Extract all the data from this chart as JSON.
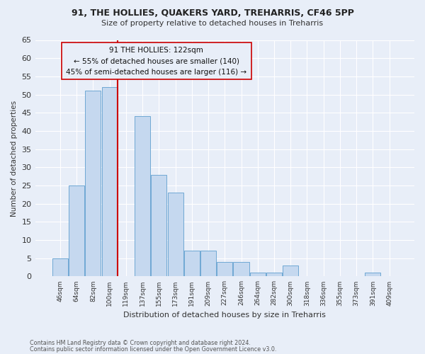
{
  "title1": "91, THE HOLLIES, QUAKERS YARD, TREHARRIS, CF46 5PP",
  "title2": "Size of property relative to detached houses in Treharris",
  "xlabel": "Distribution of detached houses by size in Treharris",
  "ylabel": "Number of detached properties",
  "footer1": "Contains HM Land Registry data © Crown copyright and database right 2024.",
  "footer2": "Contains public sector information licensed under the Open Government Licence v3.0.",
  "annotation_line1": "91 THE HOLLIES: 122sqm",
  "annotation_line2": "← 55% of detached houses are smaller (140)",
  "annotation_line3": "45% of semi-detached houses are larger (116) →",
  "bar_color": "#c5d8ef",
  "bar_edge_color": "#6fa8d4",
  "background_color": "#e8eef8",
  "grid_color": "#ffffff",
  "redline_color": "#cc0000",
  "annotation_box_color": "#cc0000",
  "categories": [
    "46sqm",
    "64sqm",
    "82sqm",
    "100sqm",
    "119sqm",
    "137sqm",
    "155sqm",
    "173sqm",
    "191sqm",
    "209sqm",
    "227sqm",
    "246sqm",
    "264sqm",
    "282sqm",
    "300sqm",
    "318sqm",
    "336sqm",
    "355sqm",
    "373sqm",
    "391sqm",
    "409sqm"
  ],
  "values": [
    5,
    25,
    51,
    52,
    0,
    44,
    28,
    23,
    7,
    7,
    4,
    4,
    1,
    1,
    3,
    0,
    0,
    0,
    0,
    1,
    0
  ],
  "redline_x": 3.5,
  "ylim": [
    0,
    65
  ],
  "yticks": [
    0,
    5,
    10,
    15,
    20,
    25,
    30,
    35,
    40,
    45,
    50,
    55,
    60,
    65
  ]
}
